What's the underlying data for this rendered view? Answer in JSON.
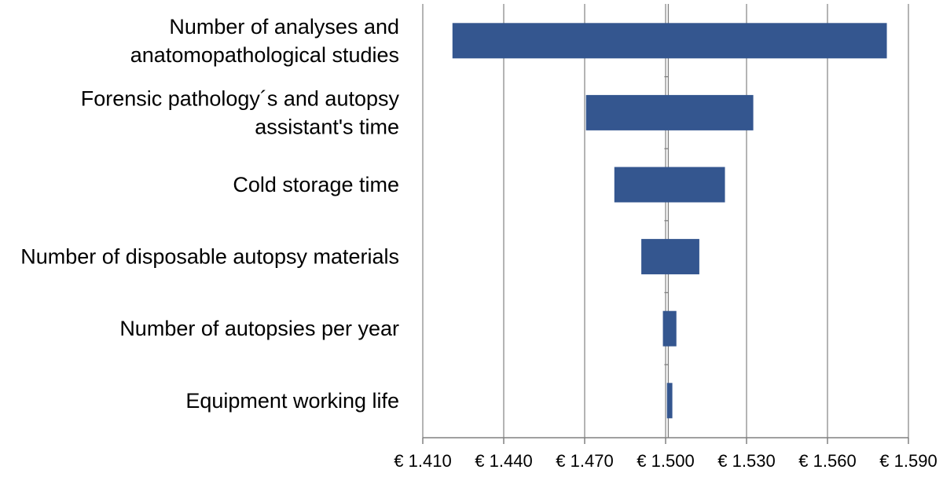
{
  "chart_data": {
    "type": "bar",
    "orientation": "horizontal",
    "style": "tornado",
    "categories": [
      [
        "Number of analyses and",
        "anatomopathological studies"
      ],
      [
        "Forensic pathology´s and autopsy",
        "assistant's time"
      ],
      [
        "Cold storage time"
      ],
      [
        "Number of disposable autopsy materials"
      ],
      [
        "Number of autopsies per year"
      ],
      [
        "Equipment working life"
      ]
    ],
    "ranges": [
      [
        1.421,
        1.582
      ],
      [
        1.4705,
        1.5325
      ],
      [
        1.481,
        1.522
      ],
      [
        1.491,
        1.5125
      ],
      [
        1.499,
        1.504
      ],
      [
        1.5005,
        1.5025
      ]
    ],
    "base_value": 1.501,
    "xlim": [
      1.41,
      1.59
    ],
    "xticks": [
      1.41,
      1.44,
      1.47,
      1.5,
      1.53,
      1.56,
      1.59
    ],
    "xtick_labels": [
      "€ 1.410",
      "€ 1.440",
      "€ 1.470",
      "€ 1.500",
      "€ 1.530",
      "€ 1.560",
      "€ 1.590"
    ],
    "grid": "vertical",
    "title": "",
    "xlabel": "",
    "ylabel": "",
    "colors": {
      "bar": "#34568f",
      "grid": "#8c8c8c",
      "axis": "#808080"
    }
  }
}
